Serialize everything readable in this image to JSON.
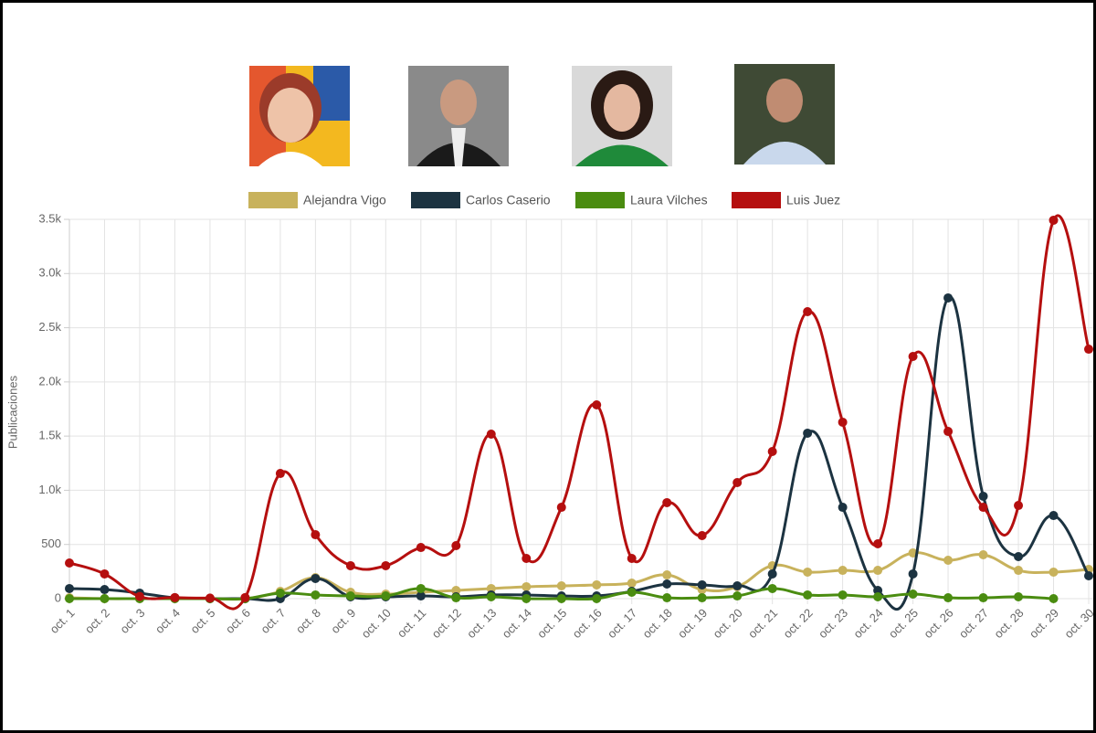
{
  "chart_data": {
    "type": "line",
    "y_label": "Publicaciones",
    "categories": [
      "oct. 1",
      "oct. 2",
      "oct. 3",
      "oct. 4",
      "oct. 5",
      "oct. 6",
      "oct. 7",
      "oct. 8",
      "oct. 9",
      "oct. 10",
      "oct. 11",
      "oct. 12",
      "oct. 13",
      "oct. 14",
      "oct. 15",
      "oct. 16",
      "oct. 17",
      "oct. 18",
      "oct. 19",
      "oct. 20",
      "oct. 21",
      "oct. 22",
      "oct. 23",
      "oct. 24",
      "oct. 25",
      "oct. 26",
      "oct. 27",
      "oct. 28",
      "oct. 29",
      "oct. 30"
    ],
    "series": [
      {
        "name": "Alejandra Vigo",
        "color": "#c8b25c",
        "values": [
          8,
          0,
          0,
          0,
          0,
          0,
          67,
          194,
          59,
          42,
          59,
          76,
          93,
          110,
          118,
          127,
          143,
          219,
          84,
          110,
          304,
          245,
          261,
          261,
          422,
          354,
          405,
          261,
          245,
          270
        ]
      },
      {
        "name": "Carlos Caserio",
        "color": "#1c3341",
        "values": [
          93,
          84,
          51,
          8,
          0,
          0,
          0,
          186,
          17,
          17,
          25,
          17,
          34,
          34,
          25,
          25,
          67,
          135,
          127,
          118,
          228,
          1527,
          843,
          76,
          228,
          2775,
          945,
          388,
          767,
          211
        ]
      },
      {
        "name": "Laura Vilches",
        "color": "#4a8c10",
        "values": [
          0,
          0,
          0,
          0,
          0,
          0,
          51,
          34,
          25,
          25,
          93,
          8,
          17,
          0,
          0,
          0,
          59,
          8,
          8,
          25,
          93,
          34,
          34,
          17,
          42,
          8,
          8,
          17,
          0,
          null
        ]
      },
      {
        "name": "Luis Juez",
        "color": "#b50f0f",
        "values": [
          329,
          228,
          20,
          10,
          5,
          10,
          1155,
          590,
          304,
          304,
          472,
          489,
          1518,
          371,
          843,
          1788,
          371,
          886,
          582,
          1071,
          1358,
          2648,
          1628,
          506,
          2235,
          1543,
          843,
          860,
          3492,
          2302
        ]
      }
    ],
    "ylim": [
      0,
      3500
    ],
    "yticks": [
      0,
      500,
      {
        "value": 1000,
        "label": "1.0k"
      },
      {
        "value": 1500,
        "label": "1.5k"
      },
      {
        "value": 2000,
        "label": "2.0k"
      },
      {
        "value": 2500,
        "label": "2.5k"
      },
      {
        "value": 3000,
        "label": "3.0k"
      },
      {
        "value": 3500,
        "label": "3.5k"
      }
    ],
    "grid": true
  }
}
